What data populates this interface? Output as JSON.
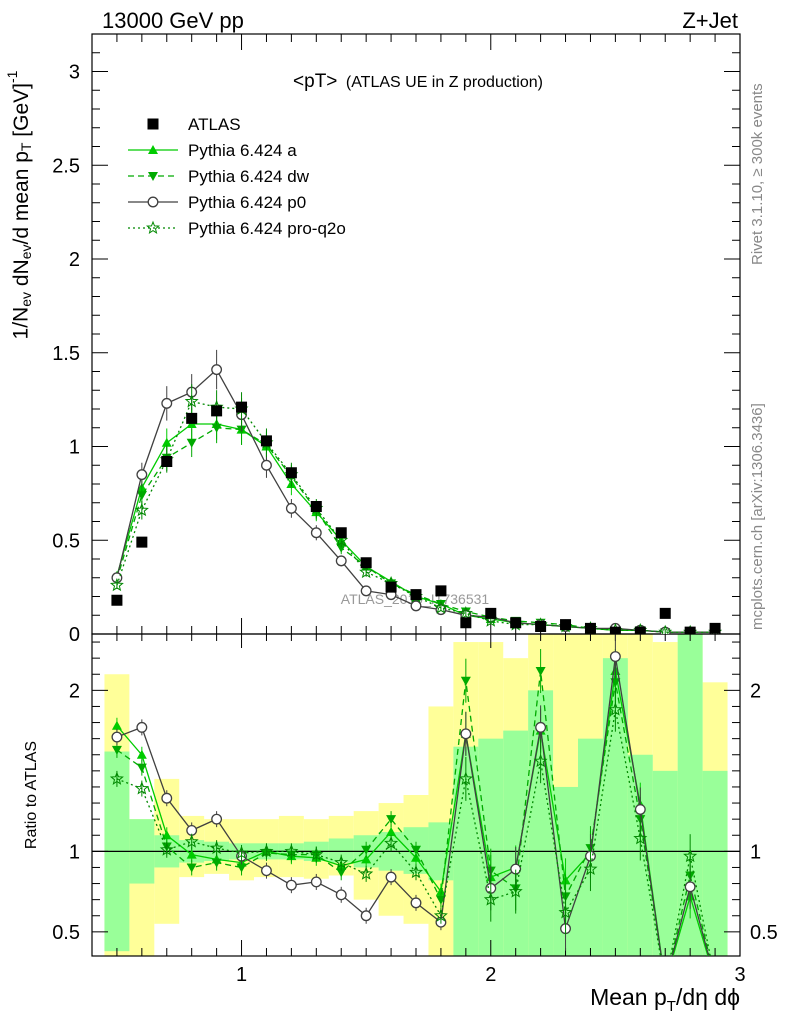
{
  "header": {
    "left": "13000 GeV pp",
    "right": "Z+Jet"
  },
  "side_text": {
    "rivet": "Rivet 3.1.10, ≥ 300k events",
    "mcplots": "mcplots.cern.ch [arXiv:1306.3436]"
  },
  "watermark": "ATLAS_2019_I1736531",
  "chart_data": {
    "type": "line",
    "title": "<pT>",
    "subtitle": "(ATLAS UE in Z production)",
    "xlabel": "Mean p_T/dη dϕ",
    "ylabel": "1/N_ev dN_ev/d mean p_T [GeV]^-1",
    "ratio_ylabel": "Ratio to ATLAS",
    "xlim": [
      0.4,
      3.0
    ],
    "ylim": [
      0,
      3.2
    ],
    "ratio_ylim": [
      0.35,
      2.35
    ],
    "x_ticks": [
      1,
      2,
      3
    ],
    "x_tick_labels": [
      "1",
      "2",
      "3"
    ],
    "y_ticks": [
      0,
      0.5,
      1,
      1.5,
      2,
      2.5,
      3
    ],
    "y_tick_labels": [
      "0",
      "0.5",
      "1",
      "1.5",
      "2",
      "2.5",
      "3"
    ],
    "ratio_ticks": [
      0.5,
      1,
      2
    ],
    "ratio_tick_labels": [
      "0.5",
      "1",
      "2"
    ],
    "legend_position": "top-left",
    "x": [
      0.5,
      0.6,
      0.7,
      0.8,
      0.9,
      1.0,
      1.1,
      1.2,
      1.3,
      1.4,
      1.5,
      1.6,
      1.7,
      1.8,
      1.9,
      2.0,
      2.1,
      2.2,
      2.3,
      2.4,
      2.5,
      2.6,
      2.7,
      2.8,
      2.9
    ],
    "data": {
      "name": "ATLAS",
      "values": [
        0.18,
        0.49,
        0.92,
        1.15,
        1.19,
        1.21,
        1.03,
        0.86,
        0.68,
        0.54,
        0.38,
        0.25,
        0.21,
        0.23,
        0.06,
        0.11,
        0.06,
        0.04,
        0.05,
        0.03,
        0.01,
        0.01,
        0.11,
        0.01,
        0.03
      ]
    },
    "series": [
      {
        "name": "Pythia 6.424 a",
        "color": "#00cc00",
        "dash": "solid",
        "marker": "triangle-up",
        "values": [
          0.31,
          0.78,
          1.02,
          1.12,
          1.12,
          1.09,
          1.0,
          0.8,
          0.65,
          0.5,
          0.36,
          0.28,
          0.2,
          0.16,
          0.1,
          0.08,
          0.06,
          0.05,
          0.04,
          0.03,
          0.02,
          0.02,
          0.01,
          0.01,
          0.01
        ],
        "ratio": [
          1.78,
          1.6,
          1.1,
          0.98,
          0.95,
          0.93,
          1.0,
          0.97,
          0.96,
          0.91,
          0.95,
          1.12,
          0.96,
          0.75,
          1.73,
          0.84,
          0.9,
          1.75,
          0.82,
          0.99,
          2.12,
          1.29,
          0.18,
          0.72,
          0.2
        ]
      },
      {
        "name": "Pythia 6.424 dw",
        "color": "#00aa00",
        "dash": "dashed",
        "marker": "triangle-down",
        "values": [
          0.29,
          0.74,
          0.94,
          1.02,
          1.1,
          1.09,
          1.01,
          0.84,
          0.66,
          0.46,
          0.36,
          0.27,
          0.21,
          0.16,
          0.12,
          0.09,
          0.07,
          0.06,
          0.05,
          0.03,
          0.02,
          0.02,
          0.01,
          0.01,
          0.01
        ],
        "ratio": [
          1.63,
          1.52,
          1.03,
          0.9,
          0.93,
          0.9,
          0.99,
          0.98,
          0.98,
          0.87,
          1.01,
          1.2,
          1.01,
          0.7,
          2.06,
          0.88,
          0.77,
          2.12,
          0.72,
          1.02,
          2.05,
          1.2,
          0.18,
          0.85,
          0.2
        ]
      },
      {
        "name": "Pythia 6.424 p0",
        "color": "#404040",
        "dash": "solid",
        "marker": "circle-open",
        "values": [
          0.3,
          0.85,
          1.23,
          1.29,
          1.41,
          1.17,
          0.9,
          0.67,
          0.54,
          0.39,
          0.23,
          0.21,
          0.15,
          0.13,
          0.1,
          0.09,
          0.06,
          0.05,
          0.04,
          0.03,
          0.03,
          0.02,
          0.01,
          0.01,
          0.01
        ],
        "ratio": [
          1.71,
          1.77,
          1.33,
          1.13,
          1.2,
          0.97,
          0.88,
          0.79,
          0.81,
          0.73,
          0.6,
          0.84,
          0.68,
          0.56,
          1.73,
          0.77,
          0.89,
          1.77,
          0.52,
          0.97,
          2.21,
          1.26,
          0.18,
          0.78,
          0.2
        ]
      },
      {
        "name": "Pythia 6.424 pro-q2o",
        "color": "#008800",
        "dash": "dotted",
        "marker": "star-open",
        "values": [
          0.26,
          0.66,
          0.93,
          1.24,
          1.21,
          1.2,
          1.02,
          0.85,
          0.67,
          0.5,
          0.33,
          0.27,
          0.2,
          0.14,
          0.11,
          0.07,
          0.05,
          0.05,
          0.04,
          0.03,
          0.02,
          0.02,
          0.01,
          0.01,
          0.01
        ],
        "ratio": [
          1.45,
          1.39,
          1.01,
          1.06,
          1.02,
          0.99,
          1.0,
          1.0,
          0.98,
          0.93,
          0.86,
          1.05,
          0.87,
          0.6,
          1.45,
          0.7,
          0.75,
          1.56,
          0.62,
          0.89,
          1.88,
          1.08,
          0.18,
          0.97,
          0.2
        ]
      }
    ],
    "ratio_band_colors": {
      "stat": "#99ff99",
      "syst": "#ffff99"
    },
    "ratio_band_inner": [
      [
        0.38,
        1.62
      ],
      [
        0.8,
        1.2
      ],
      [
        0.9,
        1.1
      ],
      [
        0.93,
        1.07
      ],
      [
        0.94,
        1.06
      ],
      [
        0.95,
        1.05
      ],
      [
        0.95,
        1.05
      ],
      [
        0.95,
        1.05
      ],
      [
        0.94,
        1.06
      ],
      [
        0.93,
        1.08
      ],
      [
        0.9,
        1.1
      ],
      [
        0.88,
        1.12
      ],
      [
        0.86,
        1.15
      ],
      [
        0.82,
        1.18
      ],
      [
        0.35,
        1.65
      ],
      [
        0.35,
        1.7
      ],
      [
        0.35,
        1.75
      ],
      [
        0.35,
        2.0
      ],
      [
        0.35,
        1.4
      ],
      [
        0.35,
        1.7
      ],
      [
        0.35,
        2.2
      ],
      [
        0.35,
        1.6
      ],
      [
        0.35,
        1.5
      ],
      [
        0.35,
        2.35
      ],
      [
        0.35,
        1.5
      ]
    ],
    "ratio_band_outer": [
      [
        0.35,
        2.1
      ],
      [
        0.35,
        1.2
      ],
      [
        0.55,
        1.45
      ],
      [
        0.84,
        1.22
      ],
      [
        0.86,
        1.2
      ],
      [
        0.82,
        1.2
      ],
      [
        0.84,
        1.2
      ],
      [
        0.84,
        1.22
      ],
      [
        0.83,
        1.2
      ],
      [
        0.85,
        1.22
      ],
      [
        0.7,
        1.25
      ],
      [
        0.6,
        1.3
      ],
      [
        0.55,
        1.35
      ],
      [
        0.35,
        1.9
      ],
      [
        0.35,
        2.3
      ],
      [
        0.35,
        2.3
      ],
      [
        0.35,
        2.2
      ],
      [
        0.35,
        2.35
      ],
      [
        0.35,
        2.35
      ],
      [
        0.35,
        2.35
      ],
      [
        0.35,
        2.35
      ],
      [
        0.35,
        2.35
      ],
      [
        0.35,
        2.3
      ],
      [
        0.35,
        2.35
      ],
      [
        0.35,
        2.05
      ]
    ]
  }
}
